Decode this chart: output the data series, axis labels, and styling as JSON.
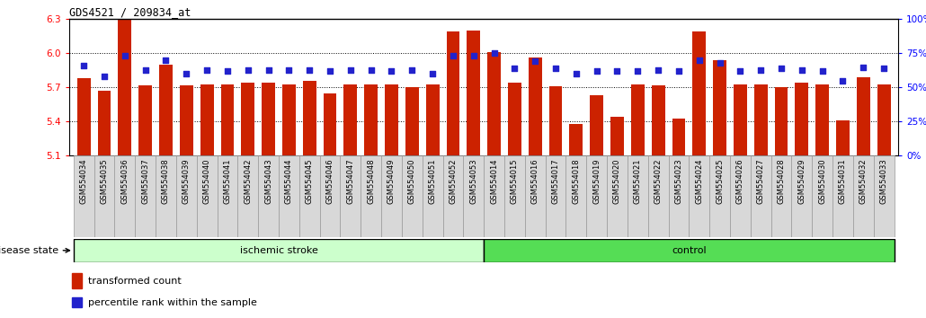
{
  "title": "GDS4521 / 209834_at",
  "ylim_left": [
    5.1,
    6.3
  ],
  "ylim_right": [
    0,
    100
  ],
  "yticks_left": [
    5.1,
    5.4,
    5.7,
    6.0,
    6.3
  ],
  "yticks_right": [
    0,
    25,
    50,
    75,
    100
  ],
  "bar_color": "#cc2200",
  "dot_color": "#2222cc",
  "samples": [
    "GSM554034",
    "GSM554035",
    "GSM554036",
    "GSM554037",
    "GSM554038",
    "GSM554039",
    "GSM554040",
    "GSM554041",
    "GSM554042",
    "GSM554043",
    "GSM554044",
    "GSM554045",
    "GSM554046",
    "GSM554047",
    "GSM554048",
    "GSM554049",
    "GSM554050",
    "GSM554051",
    "GSM554052",
    "GSM554053",
    "GSM554014",
    "GSM554015",
    "GSM554016",
    "GSM554017",
    "GSM554018",
    "GSM554019",
    "GSM554020",
    "GSM554021",
    "GSM554022",
    "GSM554023",
    "GSM554024",
    "GSM554025",
    "GSM554026",
    "GSM554027",
    "GSM554028",
    "GSM554029",
    "GSM554030",
    "GSM554031",
    "GSM554032",
    "GSM554033"
  ],
  "bar_values": [
    5.78,
    5.67,
    6.3,
    5.72,
    5.9,
    5.72,
    5.73,
    5.73,
    5.74,
    5.74,
    5.73,
    5.76,
    5.65,
    5.73,
    5.73,
    5.73,
    5.7,
    5.73,
    6.19,
    6.2,
    6.01,
    5.74,
    5.96,
    5.71,
    5.38,
    5.63,
    5.44,
    5.73,
    5.72,
    5.43,
    6.19,
    5.94,
    5.73,
    5.73,
    5.7,
    5.74,
    5.73,
    5.41,
    5.79,
    5.73
  ],
  "percentile_values": [
    66,
    58,
    73,
    63,
    70,
    60,
    63,
    62,
    63,
    63,
    63,
    63,
    62,
    63,
    63,
    62,
    63,
    60,
    73,
    73,
    75,
    64,
    69,
    64,
    60,
    62,
    62,
    62,
    63,
    62,
    70,
    68,
    62,
    63,
    64,
    63,
    62,
    55,
    65,
    64
  ],
  "group1_label": "ischemic stroke",
  "group1_count": 20,
  "group2_label": "control",
  "group2_count": 20,
  "group1_color": "#ccffcc",
  "group2_color": "#55dd55",
  "legend_bar_label": "transformed count",
  "legend_dot_label": "percentile rank within the sample",
  "disease_state_label": "disease state",
  "gridline_values": [
    5.4,
    5.7,
    6.0
  ]
}
